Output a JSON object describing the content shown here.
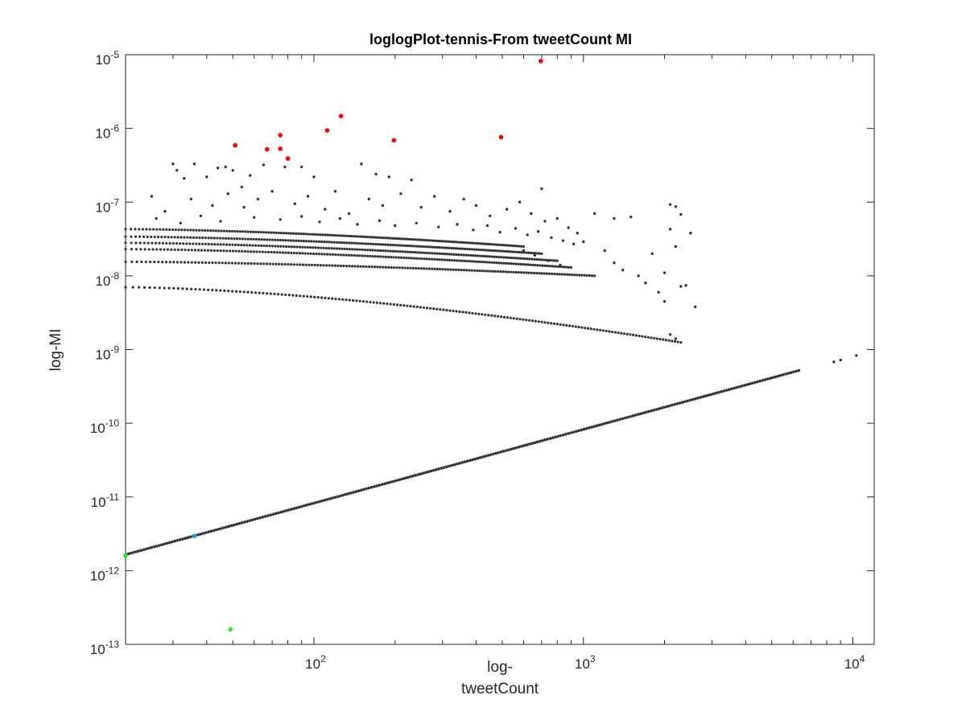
{
  "chart_data": {
    "type": "scatter",
    "title": "loglogPlot-tennis-From tweetCount MI",
    "xlabel_lines": [
      "log-",
      "tweetCount"
    ],
    "ylabel": "log-MI",
    "xscale": "log",
    "yscale": "log",
    "xlim": [
      20,
      12000
    ],
    "ylim": [
      1e-13,
      1e-05
    ],
    "xticks": [
      {
        "value": 100,
        "base": "10",
        "exp": "2"
      },
      {
        "value": 1000,
        "base": "10",
        "exp": "3"
      },
      {
        "value": 10000,
        "base": "10",
        "exp": "4"
      }
    ],
    "yticks": [
      {
        "value": 1e-13,
        "base": "10",
        "exp": "-13"
      },
      {
        "value": 1e-12,
        "base": "10",
        "exp": "-12"
      },
      {
        "value": 1e-11,
        "base": "10",
        "exp": "-11"
      },
      {
        "value": 1e-10,
        "base": "10",
        "exp": "-10"
      },
      {
        "value": 1e-09,
        "base": "10",
        "exp": "-9"
      },
      {
        "value": 1e-08,
        "base": "10",
        "exp": "-8"
      },
      {
        "value": 1e-07,
        "base": "10",
        "exp": "-7"
      },
      {
        "value": 1e-06,
        "base": "10",
        "exp": "-6"
      },
      {
        "value": 1e-05,
        "base": "10",
        "exp": "-5"
      }
    ],
    "grid": false,
    "colors": {
      "default": "#333333",
      "highlight_red": "#ff0000",
      "highlight_green": "#22ee22",
      "highlight_cyan": "#11aadd",
      "axis": "#262626"
    },
    "series": [
      {
        "color": "red",
        "points": [
          [
            51,
            5.9e-07
          ],
          [
            67,
            5.2e-07
          ],
          [
            75,
            8.1e-07
          ],
          [
            75,
            5.3e-07
          ],
          [
            80,
            3.9e-07
          ],
          [
            112,
            9.4e-07
          ],
          [
            126,
            1.47e-06
          ],
          [
            198,
            6.9e-07
          ],
          [
            495,
            7.6e-07
          ],
          [
            695,
            8.2e-06
          ]
        ]
      },
      {
        "color": "green",
        "points": [
          [
            20,
            1.6e-12
          ],
          [
            49,
            1.6e-13
          ]
        ]
      },
      {
        "color": "cyan",
        "points": [
          [
            36,
            2.95e-12
          ]
        ]
      },
      {
        "color": "default",
        "bands": [
          {
            "x": [
              20,
              2300
            ],
            "y": [
              7e-09,
              1.25e-09
            ]
          },
          {
            "x": [
              20,
              1100
            ],
            "y": [
              1.55e-08,
              1e-08
            ]
          },
          {
            "x": [
              20,
              900
            ],
            "y": [
              2.3e-08,
              1.3e-08
            ]
          },
          {
            "x": [
              20,
              800
            ],
            "y": [
              2.8e-08,
              1.6e-08
            ]
          },
          {
            "x": [
              20,
              700
            ],
            "y": [
              3.4e-08,
              2e-08
            ]
          },
          {
            "x": [
              20,
              600
            ],
            "y": [
              4.3e-08,
              2.5e-08
            ]
          }
        ],
        "line": {
          "x": [
            20,
            6300
          ],
          "y": [
            1.65e-12,
            5.2e-10
          ]
        },
        "points": [
          [
            8500,
            6.8e-10
          ],
          [
            9000,
            7.2e-10
          ],
          [
            10300,
            8.3e-10
          ],
          [
            1200,
            2.2e-08
          ],
          [
            1300,
            1.5e-08
          ],
          [
            1400,
            1.2e-08
          ],
          [
            1600,
            1e-08
          ],
          [
            1700,
            8e-09
          ],
          [
            1900,
            6e-09
          ],
          [
            2000,
            4.5e-09
          ],
          [
            2100,
            1.6e-09
          ],
          [
            2200,
            1.4e-09
          ],
          [
            1100,
            7e-08
          ],
          [
            1300,
            6e-08
          ],
          [
            1500,
            6.3e-08
          ],
          [
            2100,
            9.3e-08
          ],
          [
            2200,
            8.7e-08
          ],
          [
            2300,
            6.8e-08
          ],
          [
            2100,
            4.3e-08
          ],
          [
            2200,
            2.5e-08
          ],
          [
            2400,
            7.4e-09
          ],
          [
            2600,
            3.8e-09
          ],
          [
            1800,
            2e-08
          ],
          [
            2000,
            1.1e-08
          ],
          [
            2500,
            3.8e-08
          ],
          [
            2300,
            7.2e-09
          ],
          [
            30,
            3.3e-07
          ],
          [
            31,
            2.7e-07
          ],
          [
            33,
            2.1e-07
          ],
          [
            36,
            3.3e-07
          ],
          [
            40,
            2.2e-07
          ],
          [
            44,
            2.9e-07
          ],
          [
            47,
            3e-07
          ],
          [
            50,
            2.7e-07
          ],
          [
            54,
            1.6e-07
          ],
          [
            58,
            2.3e-07
          ],
          [
            65,
            3.2e-07
          ],
          [
            78,
            3e-07
          ],
          [
            90,
            3e-07
          ],
          [
            100,
            2.2e-07
          ],
          [
            150,
            3.3e-07
          ],
          [
            170,
            2.4e-07
          ],
          [
            190,
            2.2e-07
          ],
          [
            230,
            2e-07
          ],
          [
            700,
            1.52e-07
          ],
          [
            25,
            1.2e-07
          ],
          [
            28,
            7.5e-08
          ],
          [
            35,
            1.1e-07
          ],
          [
            42,
            9e-08
          ],
          [
            48,
            1.3e-07
          ],
          [
            55,
            8.5e-08
          ],
          [
            62,
            1.1e-07
          ],
          [
            70,
            1.4e-07
          ],
          [
            85,
            9.5e-08
          ],
          [
            95,
            1.2e-07
          ],
          [
            110,
            8e-08
          ],
          [
            120,
            1.4e-07
          ],
          [
            135,
            7e-08
          ],
          [
            160,
            1.1e-07
          ],
          [
            180,
            9e-08
          ],
          [
            210,
            1.3e-07
          ],
          [
            250,
            8.5e-08
          ],
          [
            280,
            1.2e-07
          ],
          [
            320,
            7.5e-08
          ],
          [
            360,
            1.1e-07
          ],
          [
            400,
            9e-08
          ],
          [
            450,
            6.5e-08
          ],
          [
            520,
            8e-08
          ],
          [
            580,
            1e-07
          ],
          [
            640,
            7e-08
          ],
          [
            720,
            5.5e-08
          ],
          [
            800,
            6e-08
          ],
          [
            880,
            4.5e-08
          ],
          [
            950,
            3.8e-08
          ],
          [
            1000,
            2.9e-08
          ],
          [
            26,
            6e-08
          ],
          [
            32,
            5.2e-08
          ],
          [
            38,
            6.5e-08
          ],
          [
            45,
            5.5e-08
          ],
          [
            60,
            6.2e-08
          ],
          [
            75,
            5.8e-08
          ],
          [
            90,
            6.4e-08
          ],
          [
            105,
            5.4e-08
          ],
          [
            125,
            6e-08
          ],
          [
            145,
            5e-08
          ],
          [
            175,
            5.6e-08
          ],
          [
            200,
            4.8e-08
          ],
          [
            240,
            5.2e-08
          ],
          [
            290,
            4.6e-08
          ],
          [
            340,
            5e-08
          ],
          [
            390,
            4.2e-08
          ],
          [
            440,
            4.8e-08
          ],
          [
            490,
            3.9e-08
          ],
          [
            560,
            4.4e-08
          ],
          [
            620,
            3.6e-08
          ],
          [
            680,
            4e-08
          ],
          [
            760,
            3.3e-08
          ],
          [
            840,
            3e-08
          ],
          [
            920,
            2.7e-08
          ],
          [
            600,
            2.2e-08
          ],
          [
            660,
            1.9e-08
          ],
          [
            740,
            1.6e-08
          ],
          [
            820,
            1.4e-08
          ]
        ]
      }
    ]
  }
}
